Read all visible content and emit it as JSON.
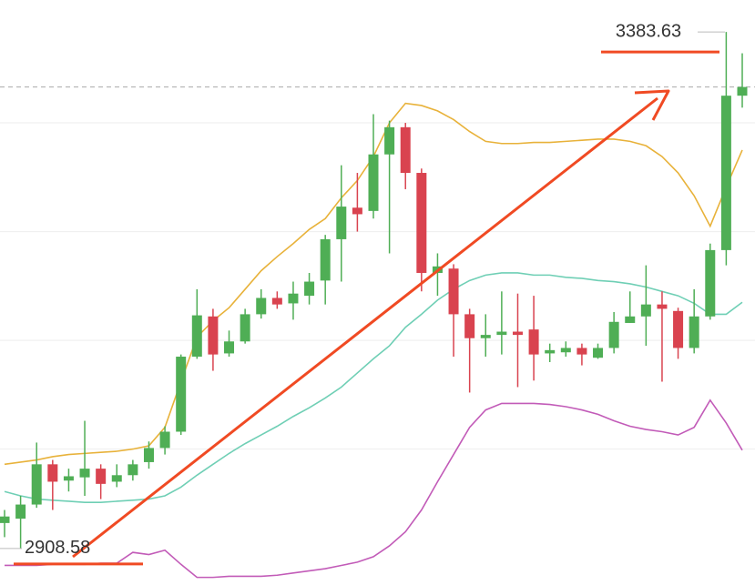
{
  "chart_data": {
    "type": "candlestick",
    "ylim": [
      2875,
      3413
    ],
    "gridlines": [
      3000,
      3100,
      3200,
      3300
    ],
    "up_color": "#4fae55",
    "down_color": "#d9434f",
    "open": [
      2932,
      2936,
      2949,
      2986,
      2971,
      2974,
      2982,
      2970,
      2976,
      2988,
      3001,
      3016,
      3085,
      3122,
      3088,
      3099,
      3124,
      3139,
      3134,
      3141,
      3155,
      3193,
      3222,
      3219,
      3271,
      3296,
      3254,
      3162,
      3166,
      3124,
      3102,
      3105,
      3108,
      3110,
      3088,
      3089,
      3093,
      3084,
      3093,
      3116,
      3122,
      3133,
      3127,
      3093,
      3122,
      3183,
      3325
    ],
    "high": [
      2944,
      2957,
      3006,
      2990,
      2982,
      3026,
      2986,
      2986,
      2990,
      3007,
      3021,
      3087,
      3147,
      3129,
      3109,
      3129,
      3147,
      3145,
      3154,
      3162,
      3197,
      3261,
      3254,
      3308,
      3302,
      3300,
      3258,
      3180,
      3170,
      3129,
      3124,
      3145,
      3143,
      3141,
      3097,
      3099,
      3097,
      3097,
      3126,
      3145,
      3169,
      3145,
      3130,
      3147,
      3189,
      3383.63,
      3364
    ],
    "low": [
      2919,
      2908.58,
      2946,
      2944,
      2961,
      2957,
      2954,
      2965,
      2971,
      2982,
      2995,
      3013,
      3083,
      3072,
      3085,
      3097,
      3120,
      3129,
      3119,
      3133,
      3133,
      3154,
      3200,
      3212,
      3180,
      3239,
      3145,
      3141,
      3085,
      3052,
      3085,
      3087,
      3057,
      3063,
      3080,
      3085,
      3077,
      3083,
      3088,
      3116,
      3095,
      3062,
      3083,
      3088,
      3119,
      3169,
      3314
    ],
    "close": [
      2938,
      2949,
      2986,
      2970,
      2975,
      2982,
      2968,
      2976,
      2986,
      3001,
      3016,
      3085,
      3123,
      3087,
      3099,
      3124,
      3139,
      3133,
      3143,
      3154,
      3193,
      3223,
      3216,
      3271,
      3296,
      3254,
      3162,
      3168,
      3124,
      3102,
      3105,
      3108,
      3105,
      3087,
      3091,
      3093,
      3087,
      3093,
      3117,
      3122,
      3133,
      3129,
      3093,
      3122,
      3183,
      3325,
      3333
    ],
    "lines": [
      {
        "color": "#e8b23a",
        "values": [
          2986,
          2988,
          2990,
          2993,
          2995,
          2996,
          2997,
          2998,
          3000,
          3003,
          3020,
          3062,
          3103,
          3118,
          3130,
          3147,
          3164,
          3177,
          3189,
          3202,
          3212,
          3231,
          3247,
          3269,
          3300,
          3318,
          3316,
          3311,
          3303,
          3292,
          3283,
          3281,
          3281,
          3282,
          3282,
          3283,
          3284,
          3285,
          3285,
          3283,
          3279,
          3269,
          3254,
          3233,
          3205,
          3241,
          3275
        ]
      },
      {
        "color": "#6fcfb5",
        "values": [
          2961,
          2957,
          2954,
          2953,
          2952,
          2951,
          2951,
          2952,
          2953,
          2954,
          2957,
          2965,
          2976,
          2986,
          2996,
          3005,
          3013,
          3021,
          3030,
          3038,
          3047,
          3057,
          3070,
          3083,
          3095,
          3112,
          3124,
          3137,
          3147,
          3155,
          3160,
          3162,
          3162,
          3160,
          3160,
          3158,
          3157,
          3155,
          3154,
          3152,
          3149,
          3145,
          3141,
          3134,
          3124,
          3124,
          3135
        ]
      },
      {
        "color": "#c25bb8",
        "values": [
          2893,
          2893,
          2893,
          2894,
          2894,
          2894,
          2895,
          2895,
          2905,
          2903,
          2907,
          2894,
          2882,
          2882,
          2883,
          2883,
          2883,
          2884,
          2886,
          2888,
          2890,
          2893,
          2896,
          2901,
          2911,
          2924,
          2944,
          2970,
          2995,
          3020,
          3036,
          3042,
          3042,
          3042,
          3041,
          3039,
          3036,
          3032,
          3026,
          3021,
          3018,
          3016,
          3013,
          3020,
          3045,
          3024,
          2999
        ]
      }
    ],
    "max_price": 3383.63,
    "min_price": 2908.58
  }
}
